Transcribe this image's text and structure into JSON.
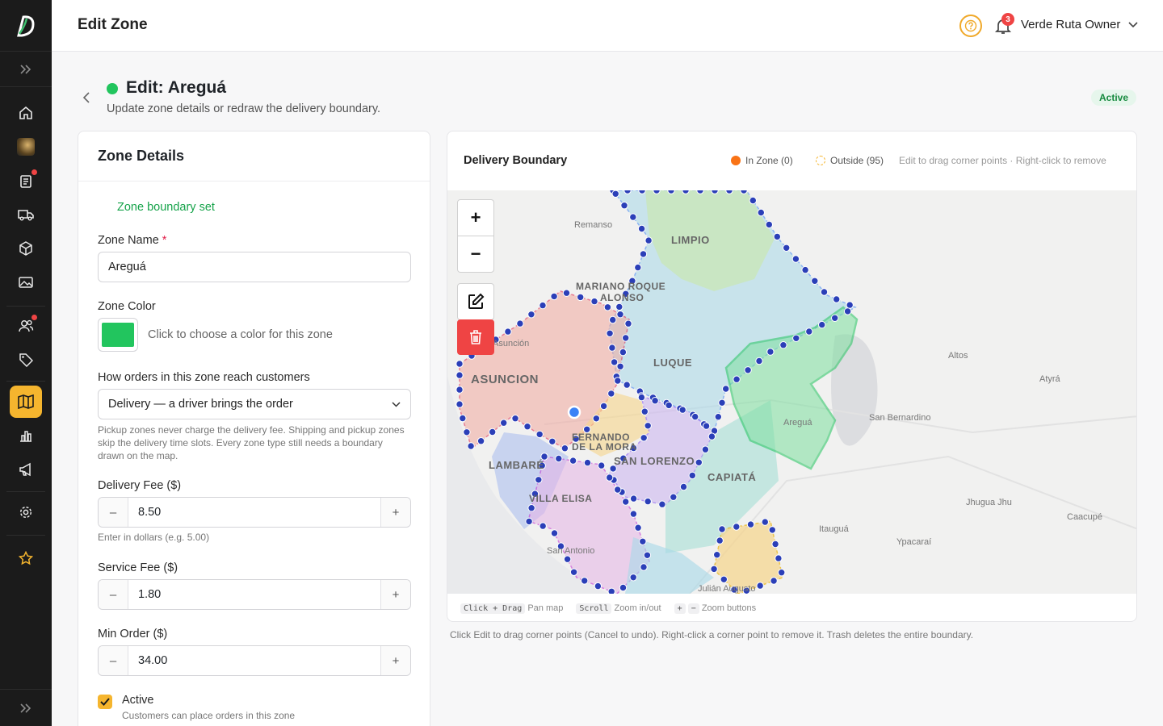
{
  "topbar": {
    "title": "Edit Zone",
    "notifications": "3",
    "user": "Verde Ruta Owner"
  },
  "sidebar": {
    "items": [
      {
        "icon": "home-icon"
      },
      {
        "icon": "store-avatar-icon"
      },
      {
        "icon": "clipboard-icon",
        "dot": true
      },
      {
        "icon": "truck-icon"
      },
      {
        "icon": "box-icon"
      },
      {
        "icon": "image-icon"
      },
      {
        "icon": "users-icon",
        "dot": true
      },
      {
        "icon": "tag-icon"
      },
      {
        "icon": "map-icon",
        "active": true
      },
      {
        "icon": "bar-chart-icon"
      },
      {
        "icon": "megaphone-icon"
      },
      {
        "icon": "gear-icon"
      },
      {
        "icon": "star-icon"
      }
    ]
  },
  "header": {
    "title": "Edit: Areguá",
    "subtitle": "Update zone details or redraw the delivery boundary.",
    "status": "Active"
  },
  "form": {
    "card_title": "Zone Details",
    "boundary_status": "Zone boundary set",
    "name_label": "Zone Name",
    "name_required": "*",
    "name_value": "Areguá",
    "color_label": "Zone Color",
    "color_hint": "Click to choose a color for this zone",
    "color_value": "#22c55e",
    "method_label": "How orders in this zone reach customers",
    "method_value": "Delivery — a driver brings the order",
    "method_hint": "Pickup zones never charge the delivery fee. Shipping and pickup zones skip the delivery time slots. Every zone type still needs a boundary drawn on the map.",
    "delivery_fee_label": "Delivery Fee ($)",
    "delivery_fee_value": "8.50",
    "delivery_fee_hint": "Enter in dollars (e.g. 5.00)",
    "service_fee_label": "Service Fee ($)",
    "service_fee_value": "1.80",
    "min_order_label": "Min Order ($)",
    "min_order_value": "34.00",
    "minus": "–",
    "plus": "+",
    "active_label": "Active",
    "active_hint": "Customers can place orders in this zone"
  },
  "map": {
    "title": "Delivery Boundary",
    "legend_in": "In Zone (0)",
    "legend_out": "Outside (95)",
    "legend_hint": "Edit to drag corner points · Right-click to remove",
    "zoom_in": "+",
    "zoom_out": "−",
    "labels": {
      "remanso": "Remanso",
      "limpio": "LIMPIO",
      "mariano": "MARIANO ROQUE",
      "alonso": "ALONSO",
      "asuncion_small": "Asunción",
      "asuncion": "ASUNCION",
      "luque": "LUQUE",
      "altos": "Altos",
      "atyra": "Atyrá",
      "aregua": "Areguá",
      "san_bernardino": "San Bernardino",
      "fernando": "FERNANDO",
      "de_la_mora": "DE LA MORA",
      "san_lorenzo": "SAN LORENZO",
      "lambare": "LAMBARÉ",
      "capiata": "CAPIATÁ",
      "villa_elisa": "VILLA ELISA",
      "jhugua": "Jhugua Jhu",
      "caacupe": "Caacupé",
      "itaugua": "Itauguá",
      "ypacarai": "Ypacaraí",
      "san_antonio": "San Antonio",
      "julian": "Julián Augusto"
    },
    "footer": {
      "k1": "Click + Drag",
      "t1": "Pan map",
      "k2": "Scroll",
      "t2": "Zoom in/out",
      "k3": "+",
      "k4": "−",
      "t3": "Zoom buttons"
    },
    "note": "Click Edit to drag corner points (Cancel to undo). Right-click a corner point to remove it. Trash deletes the entire boundary."
  }
}
